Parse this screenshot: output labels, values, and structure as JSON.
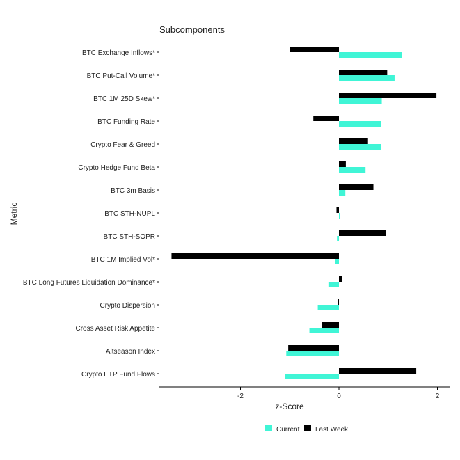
{
  "chart_data": {
    "type": "bar",
    "orientation": "horizontal",
    "title": "Subcomponents",
    "xlabel": "z-Score",
    "ylabel": "Metric",
    "xlim": [
      -3.6,
      2.2
    ],
    "xticks": [
      -2,
      0,
      2
    ],
    "grid": false,
    "legend_position": "bottom",
    "categories": [
      "BTC Exchange Inflows*",
      "BTC Put-Call Volume*",
      "BTC 1M 25D Skew*",
      "BTC Funding Rate",
      "Crypto Fear & Greed",
      "Crypto Hedge Fund Beta",
      "BTC 3m Basis",
      "BTC STH-NUPL",
      "BTC STH-SOPR",
      "BTC 1M Implied Vol*",
      "BTC Long Futures Liquidation Dominance*",
      "Crypto Dispersion",
      "Cross Asset Risk Appetite",
      "Altseason Index",
      "Crypto ETP Fund Flows"
    ],
    "series": [
      {
        "name": "Current",
        "color": "#40f5d6",
        "values": [
          1.28,
          1.13,
          0.87,
          0.85,
          0.85,
          0.54,
          0.13,
          0.02,
          -0.04,
          -0.08,
          -0.2,
          -0.43,
          -0.6,
          -1.07,
          -1.1
        ]
      },
      {
        "name": "Last Week",
        "color": "#000000",
        "values": [
          -1.0,
          0.98,
          1.98,
          -0.52,
          0.59,
          0.14,
          0.7,
          -0.05,
          0.95,
          -3.4,
          0.06,
          -0.02,
          -0.34,
          -1.03,
          1.57
        ]
      }
    ]
  }
}
